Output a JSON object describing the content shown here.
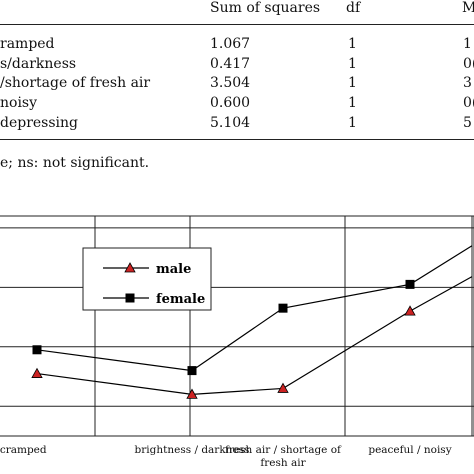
{
  "table": {
    "headers": [
      "Sum of squares",
      "df",
      "M"
    ],
    "rows": [
      {
        "label": "ramped",
        "sum_of_squares": "1.067",
        "df": "1",
        "m": "1"
      },
      {
        "label": "s/darkness",
        "sum_of_squares": "0.417",
        "df": "1",
        "m": "0("
      },
      {
        "label": "/shortage of fresh air",
        "sum_of_squares": "3.504",
        "df": "1",
        "m": "3"
      },
      {
        "label": "noisy",
        "sum_of_squares": "0.600",
        "df": "1",
        "m": "0("
      },
      {
        "label": "depressing",
        "sum_of_squares": "5.104",
        "df": "1",
        "m": "5"
      }
    ]
  },
  "footnote": "e; ns: not significant.",
  "chart_data": {
    "type": "line",
    "categories": [
      "omy / cramped",
      "brightness / darkness",
      "fresh air / shortage of fresh air",
      "peaceful / noisy",
      ""
    ],
    "category_lines": [
      [
        "omy / cramped"
      ],
      [
        "brightness / darkness"
      ],
      [
        "fresh air / shortage of",
        "fresh air"
      ],
      [
        "peaceful / noisy"
      ],
      [
        ""
      ]
    ],
    "series": [
      {
        "name": "male",
        "marker": "triangle",
        "color": "#cc2222",
        "values": [
          3.55,
          3.2,
          3.3,
          4.6,
          5.18
        ]
      },
      {
        "name": "female",
        "marker": "square",
        "color": "#000000",
        "values": [
          3.95,
          3.6,
          4.65,
          5.05,
          5.7
        ]
      }
    ],
    "ylim": [
      2.5,
      6.2
    ],
    "grid": true,
    "legend": "top-left"
  }
}
